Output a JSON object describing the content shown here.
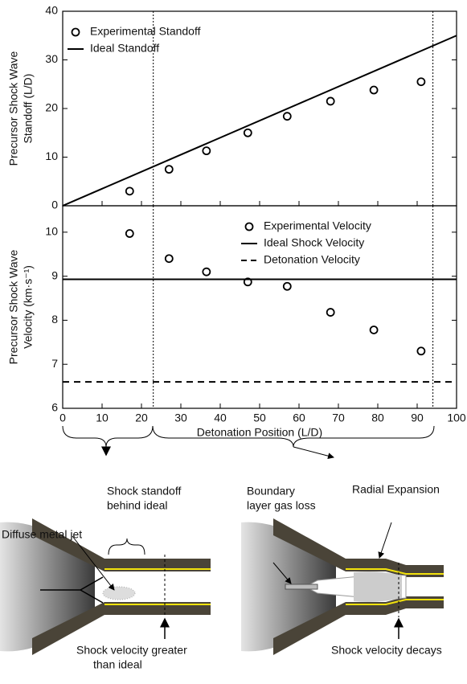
{
  "chart_data": [
    {
      "type": "scatter-line",
      "ylabel": [
        "Precursor Shock Wave",
        "Standoff (L/D)"
      ],
      "xlim": [
        0,
        100
      ],
      "ylim": [
        0,
        40
      ],
      "xticks": [
        0,
        10,
        20,
        30,
        40,
        50,
        60,
        70,
        80,
        90,
        100
      ],
      "yticks": [
        0,
        10,
        20,
        30,
        40
      ],
      "vlines": [
        23,
        94
      ],
      "legend": "upper left",
      "series": [
        {
          "name": "Experimental Standoff",
          "type": "scatter",
          "color": "#000000",
          "x": [
            17,
            27,
            36.5,
            47,
            57,
            68,
            79,
            91
          ],
          "values": [
            3,
            7.5,
            11.3,
            15,
            18.4,
            21.5,
            23.8,
            25.5
          ]
        },
        {
          "name": "Ideal Standoff",
          "type": "line",
          "color": "#000000",
          "x": [
            0,
            100
          ],
          "values": [
            0,
            35
          ]
        }
      ]
    },
    {
      "type": "scatter-line",
      "xlabel": "Detonation Position (L/D)",
      "ylabel": [
        "Precursor Shock Wave",
        "Velocity (km·s⁻¹)"
      ],
      "xlim": [
        0,
        100
      ],
      "ylim": [
        6,
        10.6
      ],
      "xticks": [
        0,
        10,
        20,
        30,
        40,
        50,
        60,
        70,
        80,
        90,
        100
      ],
      "yticks": [
        6,
        7,
        8,
        9,
        10
      ],
      "vlines": [
        23,
        94
      ],
      "legend": "upper right",
      "series": [
        {
          "name": "Experimental Velocity",
          "type": "scatter",
          "color": "#000000",
          "x": [
            17,
            27,
            36.5,
            47,
            57,
            68,
            79,
            91
          ],
          "values": [
            9.97,
            9.4,
            9.1,
            8.87,
            8.77,
            8.18,
            7.78,
            7.3
          ]
        },
        {
          "name": "Ideal Shock Velocity",
          "type": "hline",
          "dash": false,
          "color": "#000000",
          "values": [
            8.93
          ]
        },
        {
          "name": "Detonation Velocity",
          "type": "hline",
          "dash": true,
          "color": "#000000",
          "values": [
            6.6
          ]
        }
      ]
    }
  ],
  "diagram": {
    "diffuse_jet": "Diffuse metal jet",
    "shock_standoff": [
      "Shock standoff",
      "behind ideal"
    ],
    "shock_greater": [
      "Shock velocity greater",
      "than ideal"
    ],
    "boundary_loss": [
      "Boundary",
      "layer gas loss"
    ],
    "radial": "Radial Expansion",
    "shock_decays": "Shock velocity decays"
  }
}
